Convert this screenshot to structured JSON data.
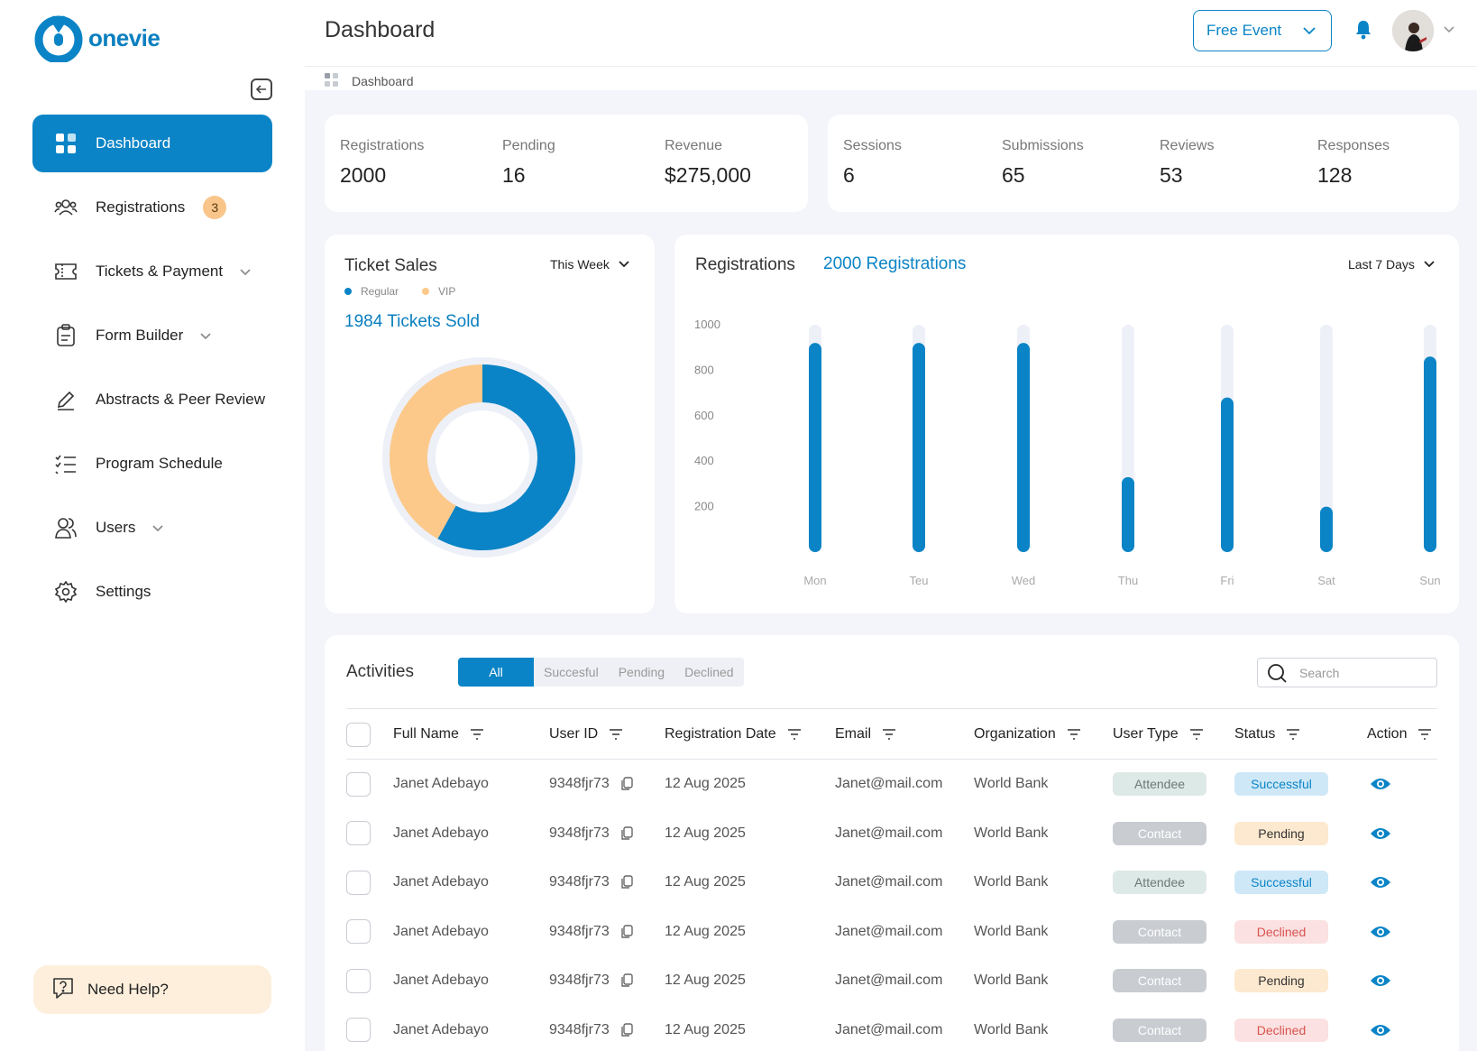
{
  "brand": {
    "name": "onevie",
    "color": "#0a84c6"
  },
  "sidebar": {
    "items": [
      {
        "label": "Dashboard",
        "icon": "grid-icon",
        "active": true
      },
      {
        "label": "Registrations",
        "icon": "users-group-icon",
        "badge": "3"
      },
      {
        "label": "Tickets & Payment",
        "icon": "ticket-icon",
        "has_chevron": true
      },
      {
        "label": "Form Builder",
        "icon": "clipboard-icon",
        "has_chevron": true
      },
      {
        "label": "Abstracts & Peer Review",
        "icon": "pen-icon"
      },
      {
        "label": "Program Schedule",
        "icon": "checklist-icon"
      },
      {
        "label": "Users",
        "icon": "users-icon",
        "has_chevron": true
      },
      {
        "label": "Settings",
        "icon": "gear-icon"
      }
    ],
    "help_label": "Need Help?"
  },
  "header": {
    "title": "Dashboard",
    "event_select": "Free Event",
    "breadcrumb": "Dashboard"
  },
  "stats_left": [
    {
      "label": "Registrations",
      "value": "2000"
    },
    {
      "label": "Pending",
      "value": "16"
    },
    {
      "label": "Revenue",
      "value": "$275,000"
    }
  ],
  "stats_right": [
    {
      "label": "Sessions",
      "value": "6"
    },
    {
      "label": "Submissions",
      "value": "65"
    },
    {
      "label": "Reviews",
      "value": "53"
    },
    {
      "label": "Responses",
      "value": "128"
    }
  ],
  "ticket_sales": {
    "title": "Ticket Sales",
    "period": "This Week",
    "legend_regular": "Regular",
    "legend_vip": "VIP",
    "sold_text": "1984 Tickets Sold",
    "colors": {
      "regular": "#0a84c6",
      "vip": "#fcc98a",
      "track": "#eef0f8"
    }
  },
  "registrations_chart": {
    "title": "Registrations",
    "total_text": "2000 Registrations",
    "period": "Last 7 Days"
  },
  "chart_data": [
    {
      "type": "pie",
      "title": "Ticket Sales",
      "categories": [
        "Regular",
        "VIP"
      ],
      "values": [
        58,
        42
      ]
    },
    {
      "type": "bar",
      "title": "Registrations",
      "categories": [
        "Mon",
        "Teu",
        "Wed",
        "Thu",
        "Fri",
        "Sat",
        "Sun"
      ],
      "values": [
        920,
        920,
        920,
        330,
        680,
        200,
        860
      ],
      "max_values": [
        1000,
        1000,
        1000,
        1000,
        1000,
        1000,
        1000
      ],
      "yticks": [
        1000,
        800,
        600,
        400,
        200
      ],
      "ylim": [
        0,
        1000
      ],
      "grid": false
    }
  ],
  "activities": {
    "title": "Activities",
    "tabs": [
      "All",
      "Succesful",
      "Pending",
      "Declined"
    ],
    "search_placeholder": "Search",
    "columns": [
      "Full Name",
      "User ID",
      "Registration Date",
      "Email",
      "Organization",
      "User Type",
      "Status",
      "Action"
    ],
    "rows": [
      {
        "name": "Janet Adebayo",
        "id": "9348fjr73",
        "date": "12 Aug 2025",
        "email": "Janet@mail.com",
        "org": "World Bank",
        "type": "Attendee",
        "status": "Successful"
      },
      {
        "name": "Janet Adebayo",
        "id": "9348fjr73",
        "date": "12 Aug 2025",
        "email": "Janet@mail.com",
        "org": "World Bank",
        "type": "Contact",
        "status": "Pending"
      },
      {
        "name": "Janet Adebayo",
        "id": "9348fjr73",
        "date": "12 Aug 2025",
        "email": "Janet@mail.com",
        "org": "World Bank",
        "type": "Attendee",
        "status": "Successful"
      },
      {
        "name": "Janet Adebayo",
        "id": "9348fjr73",
        "date": "12 Aug 2025",
        "email": "Janet@mail.com",
        "org": "World Bank",
        "type": "Contact",
        "status": "Declined"
      },
      {
        "name": "Janet Adebayo",
        "id": "9348fjr73",
        "date": "12 Aug 2025",
        "email": "Janet@mail.com",
        "org": "World Bank",
        "type": "Contact",
        "status": "Pending"
      },
      {
        "name": "Janet Adebayo",
        "id": "9348fjr73",
        "date": "12 Aug 2025",
        "email": "Janet@mail.com",
        "org": "World Bank",
        "type": "Contact",
        "status": "Declined"
      }
    ]
  },
  "pill_colors": {
    "Attendee": {
      "bg": "#dde9e6",
      "fg": "#6b7a77"
    },
    "Contact": {
      "bg": "#c9ccd1",
      "fg": "#ffffff"
    },
    "Successful": {
      "bg": "#cfe8f7",
      "fg": "#0a84c6"
    },
    "Pending": {
      "bg": "#fde9cf",
      "fg": "#333333"
    },
    "Declined": {
      "bg": "#fbe1e1",
      "fg": "#d9534f"
    }
  }
}
